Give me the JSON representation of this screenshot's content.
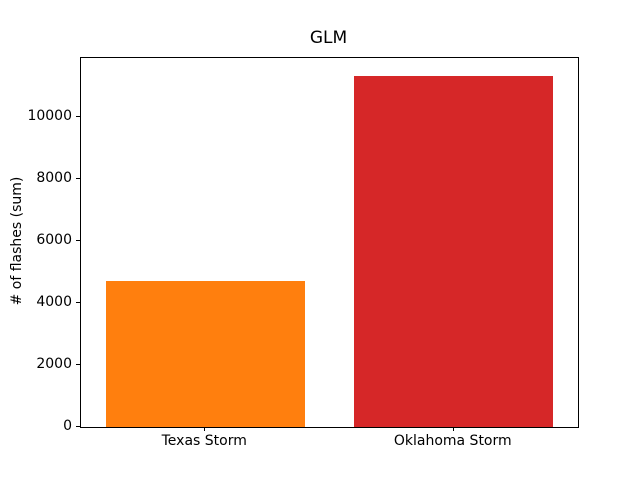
{
  "chart_data": {
    "type": "bar",
    "title": "GLM",
    "xlabel": "",
    "ylabel": "# of flashes (sum)",
    "categories": [
      "Texas Storm",
      "Oklahoma Storm"
    ],
    "values": [
      4700,
      11320
    ],
    "bar_colors": [
      "#ff7f0e",
      "#d62728"
    ],
    "yticks": [
      0,
      2000,
      4000,
      6000,
      8000,
      10000
    ],
    "ytick_labels": [
      "0",
      "2000",
      "4000",
      "6000",
      "8000",
      "10000"
    ],
    "ylim": [
      0,
      11890
    ],
    "grid": false,
    "legend": null,
    "colors": {
      "background": "#ffffff",
      "spine": "#000000",
      "text": "#000000"
    }
  }
}
